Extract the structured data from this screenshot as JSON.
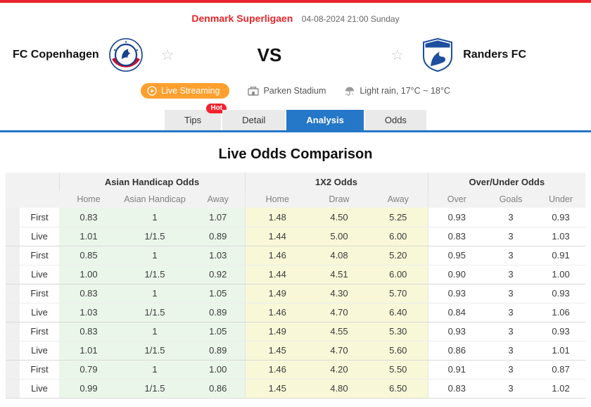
{
  "header": {
    "league": "Denmark Superligaen",
    "datetime": "04-08-2024 21:00 Sunday",
    "home_team": "FC Copenhagen",
    "away_team": "Randers FC",
    "vs": "VS",
    "live_streaming": "Live Streaming",
    "stadium": "Parken Stadium",
    "weather": "Light rain, 17°C ~ 18°C",
    "favorite_icon": "☆"
  },
  "tabs": [
    {
      "label": "Tips",
      "badge": "Hot"
    },
    {
      "label": "Detail"
    },
    {
      "label": "Analysis"
    },
    {
      "label": "Odds"
    }
  ],
  "active_tab": "Analysis",
  "section_title": "Live Odds Comparison",
  "colors": {
    "accent_red": "#e8252a",
    "accent_blue": "#2577c8",
    "accent_orange": "#ffa02e",
    "asian_handicap_bg": "#eaf6ea",
    "x2_bg": "#f8f8d8"
  },
  "table": {
    "groups": [
      "Asian Handicap Odds",
      "1X2 Odds",
      "Over/Under Odds"
    ],
    "columns": [
      "Home",
      "Asian Handicap",
      "Away",
      "Home",
      "Draw",
      "Away",
      "Over",
      "Goals",
      "Under"
    ],
    "rows": [
      {
        "type": "First",
        "values": [
          "0.83",
          "1",
          "1.07",
          "1.48",
          "4.50",
          "5.25",
          "0.93",
          "3",
          "0.93"
        ]
      },
      {
        "type": "Live",
        "values": [
          "1.01",
          "1/1.5",
          "0.89",
          "1.44",
          "5.00",
          "6.00",
          "0.83",
          "3",
          "1.03"
        ]
      },
      {
        "type": "First",
        "values": [
          "0.85",
          "1",
          "1.03",
          "1.46",
          "4.08",
          "5.20",
          "0.95",
          "3",
          "0.91"
        ]
      },
      {
        "type": "Live",
        "values": [
          "1.00",
          "1/1.5",
          "0.92",
          "1.44",
          "4.51",
          "6.00",
          "0.90",
          "3",
          "1.00"
        ]
      },
      {
        "type": "First",
        "values": [
          "0.83",
          "1",
          "1.05",
          "1.49",
          "4.30",
          "5.70",
          "0.93",
          "3",
          "0.93"
        ]
      },
      {
        "type": "Live",
        "values": [
          "1.03",
          "1/1.5",
          "0.89",
          "1.46",
          "4.70",
          "6.40",
          "0.84",
          "3",
          "1.06"
        ]
      },
      {
        "type": "First",
        "values": [
          "0.83",
          "1",
          "1.05",
          "1.49",
          "4.55",
          "5.30",
          "0.93",
          "3",
          "0.93"
        ]
      },
      {
        "type": "Live",
        "values": [
          "1.01",
          "1/1.5",
          "0.89",
          "1.45",
          "4.70",
          "5.60",
          "0.86",
          "3",
          "1.01"
        ]
      },
      {
        "type": "First",
        "values": [
          "0.79",
          "1",
          "1.00",
          "1.46",
          "4.20",
          "5.50",
          "0.91",
          "3",
          "0.87"
        ]
      },
      {
        "type": "Live",
        "values": [
          "0.99",
          "1/1.5",
          "0.86",
          "1.45",
          "4.80",
          "6.50",
          "0.83",
          "3",
          "1.02"
        ]
      }
    ]
  }
}
